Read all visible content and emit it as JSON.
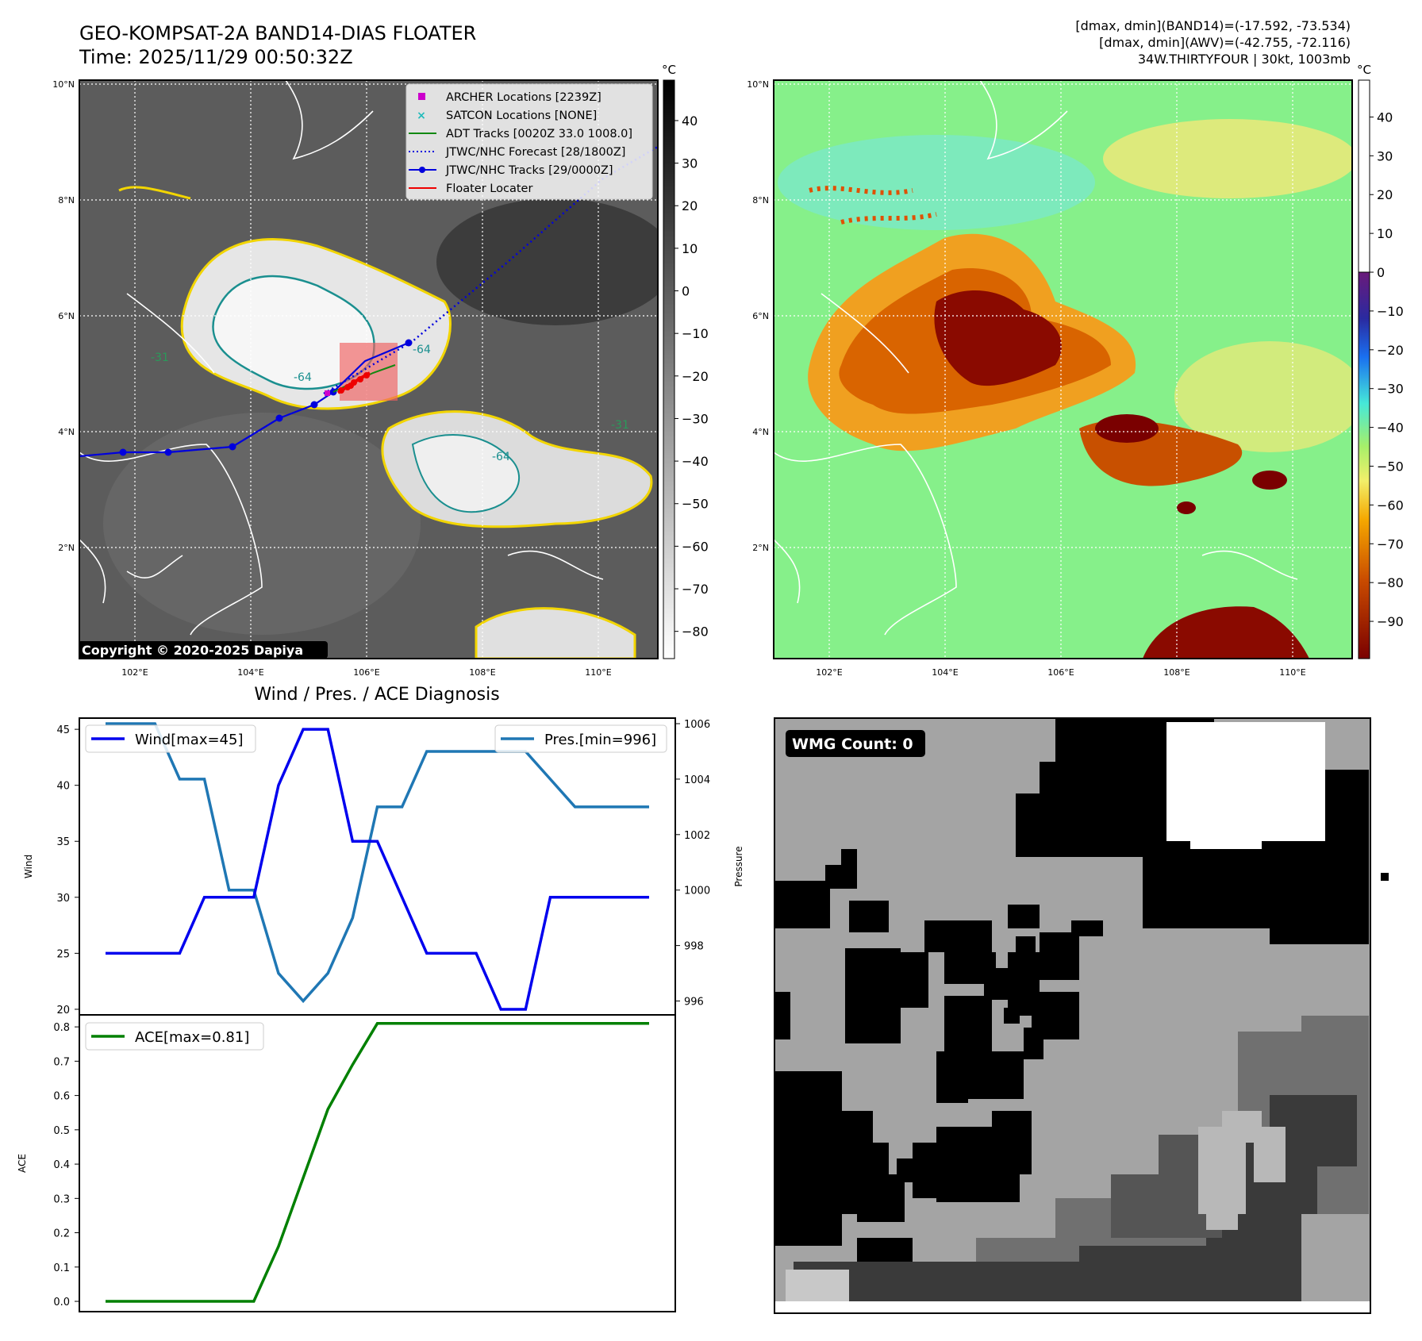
{
  "header": {
    "title_line1": "GEO-KOMPSAT-2A BAND14-DIAS FLOATER",
    "title_line2": "Time: 2025/11/29 00:50:32Z",
    "info_line1": "[dmax, dmin](BAND14)=(-17.592, -73.534)",
    "info_line2": "[dmax, dmin](AWV)=(-42.755, -72.116)",
    "info_line3": "34W.THIRTYFOUR | 30kt, 1003mb"
  },
  "map": {
    "lat_ticks": [
      "10°N",
      "8°N",
      "6°N",
      "4°N",
      "2°N"
    ],
    "lon_ticks": [
      "102°E",
      "104°E",
      "106°E",
      "108°E",
      "110°E"
    ],
    "copyright": "Copyright © 2020-2025 Dapiya",
    "legend": [
      {
        "label": "ARCHER Locations [2239Z]",
        "color": "#cc00cc",
        "symbol": "square"
      },
      {
        "label": "SATCON Locations [NONE]",
        "color": "#22bbbb",
        "symbol": "x"
      },
      {
        "label": "ADT Tracks [0020Z 33.0 1008.0]",
        "color": "#118811",
        "symbol": "line"
      },
      {
        "label": "JTWC/NHC Forecast [28/1800Z]",
        "color": "#0000dd",
        "symbol": "dotted"
      },
      {
        "label": "JTWC/NHC Tracks [29/0000Z]",
        "color": "#0000dd",
        "symbol": "line-dot"
      },
      {
        "label": "Floater Locater",
        "color": "#ee0000",
        "symbol": "line"
      }
    ],
    "contour_labels": [
      "-64",
      "-64",
      "-31",
      "-64",
      "-31"
    ],
    "left_colorbar": {
      "unit": "°C",
      "ticks": [
        "40",
        "30",
        "20",
        "10",
        "0",
        "−10",
        "−20",
        "−30",
        "−40",
        "−50",
        "−60",
        "−70",
        "−80"
      ]
    },
    "right_colorbar": {
      "unit": "°C",
      "ticks": [
        "40",
        "30",
        "20",
        "10",
        "0",
        "−10",
        "−20",
        "−30",
        "−40",
        "−50",
        "−60",
        "−70",
        "−80",
        "−90"
      ]
    }
  },
  "diagnosis": {
    "title": "Wind / Pres. / ACE Diagnosis",
    "wind_legend": "Wind[max=45]",
    "pres_legend": "Pres.[min=996]",
    "ace_legend": "ACE[max=0.81]",
    "wind_axis_label": "Wind",
    "pres_axis_label": "Pressure",
    "ace_axis_label": "ACE",
    "colors": {
      "wind": "#0000ee",
      "pressure": "#1f77b4",
      "ace": "#008000"
    }
  },
  "wmg": {
    "label": "WMG Count: 0"
  },
  "chart_data": [
    {
      "type": "line",
      "title": "Wind / Pres. / ACE Diagnosis",
      "ylabel": "Wind",
      "ylim": [
        19.5,
        46
      ],
      "yticks": [
        20,
        25,
        30,
        35,
        40,
        45
      ],
      "series": [
        {
          "name": "Wind[max=45]",
          "axis": "left",
          "values": [
            25,
            25,
            25,
            25,
            30,
            30,
            30,
            40,
            45,
            45,
            35,
            35,
            30,
            25,
            25,
            25,
            20,
            20,
            30,
            30,
            30,
            30,
            30
          ]
        },
        {
          "name": "Pres.[min=996]",
          "axis": "right",
          "values": [
            1006,
            1006,
            1006,
            1004,
            1004,
            1000,
            1000,
            997,
            996,
            997,
            999,
            1003,
            1003,
            1005,
            1005,
            1005,
            1005,
            1005,
            1004,
            1003,
            1003,
            1003,
            1003
          ]
        }
      ],
      "y2label": "Pressure",
      "y2lim": [
        995.5,
        1006.2
      ],
      "y2ticks": [
        996,
        998,
        1000,
        1002,
        1004,
        1006
      ]
    },
    {
      "type": "line",
      "ylabel": "ACE",
      "ylim": [
        -0.03,
        0.835
      ],
      "yticks": [
        0.0,
        0.1,
        0.2,
        0.3,
        0.4,
        0.5,
        0.6,
        0.7,
        0.8
      ],
      "series": [
        {
          "name": "ACE[max=0.81]",
          "values": [
            0,
            0,
            0,
            0,
            0,
            0,
            0,
            0.16,
            0.36,
            0.56,
            0.69,
            0.81,
            0.81,
            0.81,
            0.81,
            0.81,
            0.81,
            0.81,
            0.81,
            0.81,
            0.81,
            0.81,
            0.81
          ]
        }
      ]
    }
  ]
}
